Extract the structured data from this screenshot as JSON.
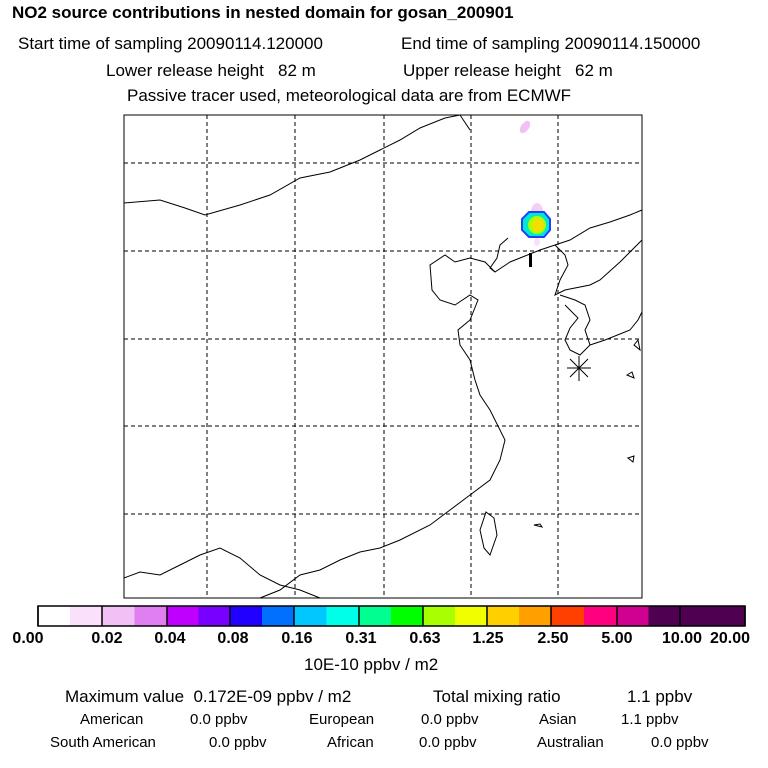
{
  "header": {
    "title": "NO2 source contributions in nested domain for gosan_200901",
    "start_time": "Start time of sampling 20090114.120000",
    "end_time": "End time of sampling 20090114.150000",
    "lower_height": "Lower release height   82 m",
    "upper_height": "Upper release height   62 m",
    "note": "Passive tracer used, meteorological data are from ECMWF"
  },
  "map": {
    "marker_label": "1"
  },
  "colorbar": {
    "labels": [
      "0.00",
      "0.02",
      "0.04",
      "0.08",
      "0.16",
      "0.31",
      "0.63",
      "1.25",
      "2.50",
      "5.00",
      "10.00",
      "20.00"
    ],
    "colors": [
      "#ffffff",
      "#fbe0fb",
      "#f3c0f5",
      "#e080f0",
      "#c000ff",
      "#7800ff",
      "#2000ff",
      "#0070ff",
      "#00c8ff",
      "#00ffe8",
      "#00ff90",
      "#00ff00",
      "#a8ff00",
      "#f0ff00",
      "#ffd000",
      "#ffa000",
      "#ff4000",
      "#ff0080",
      "#d00090",
      "#500050"
    ],
    "unit": "10E-10 ppbv / m2"
  },
  "footer": {
    "max_label": "Maximum value  0.172E-09 ppbv / m2",
    "total_label": "Total mixing ratio",
    "total_value": "1.1 ppbv",
    "rows": [
      [
        {
          "name": "American",
          "value": "0.0 ppbv"
        },
        {
          "name": "European",
          "value": "0.0 ppbv"
        },
        {
          "name": "Asian",
          "value": "1.1 ppbv"
        }
      ],
      [
        {
          "name": "South American",
          "value": "0.0 ppbv"
        },
        {
          "name": "African",
          "value": "0.0 ppbv"
        },
        {
          "name": "Australian",
          "value": "0.0 ppbv"
        }
      ]
    ]
  },
  "chart_data": {
    "type": "heatmap",
    "title": "NO2 source contributions in nested domain for gosan_200901",
    "colorbar_unit": "10E-10 ppbv / m2",
    "colorbar_levels": [
      0.0,
      0.02,
      0.04,
      0.08,
      0.16,
      0.31,
      0.63,
      1.25,
      2.5,
      5.0,
      10.0,
      20.0
    ],
    "max_value": "0.172E-09 ppbv / m2",
    "hotspot_peak_approx": 1.7
  }
}
